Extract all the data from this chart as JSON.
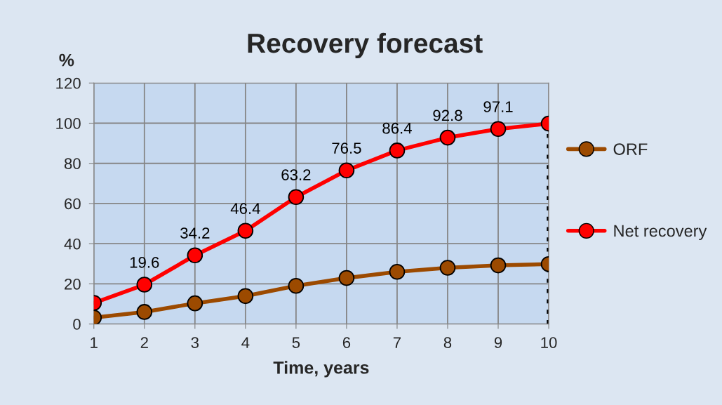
{
  "chart_data": {
    "type": "line",
    "title": "Recovery forecast",
    "xlabel": "Time, years",
    "ylabel": "%",
    "x": [
      1,
      2,
      3,
      4,
      5,
      6,
      7,
      8,
      9,
      10
    ],
    "series": [
      {
        "name": "ORF",
        "color": "#9c4a00",
        "values": [
          3.2,
          6,
          10.3,
          13.9,
          19,
          22.9,
          26,
          28,
          29.2,
          29.8
        ]
      },
      {
        "name": "Net recovery",
        "color": "#ff0000",
        "values": [
          10.5,
          19.6,
          34.2,
          46.4,
          63.2,
          76.5,
          86.4,
          92.8,
          97.1,
          99.8
        ],
        "value_labels": [
          null,
          "19.6",
          "34.2",
          "46.4",
          "63.2",
          "76.5",
          "86.4",
          "92.8",
          "97.1",
          null
        ]
      }
    ],
    "xlim": [
      1,
      10
    ],
    "xticks": [
      1,
      2,
      3,
      4,
      5,
      6,
      7,
      8,
      9,
      10
    ],
    "ylim": [
      0,
      120
    ],
    "yticks": [
      0,
      20,
      40,
      60,
      80,
      100,
      120
    ],
    "grid": true,
    "legend": "right",
    "marker": "circle",
    "line_style": "solid",
    "ref_lines": [
      {
        "axis": "x",
        "value": 10,
        "color": "#000000",
        "line_style": "dotted"
      }
    ]
  }
}
